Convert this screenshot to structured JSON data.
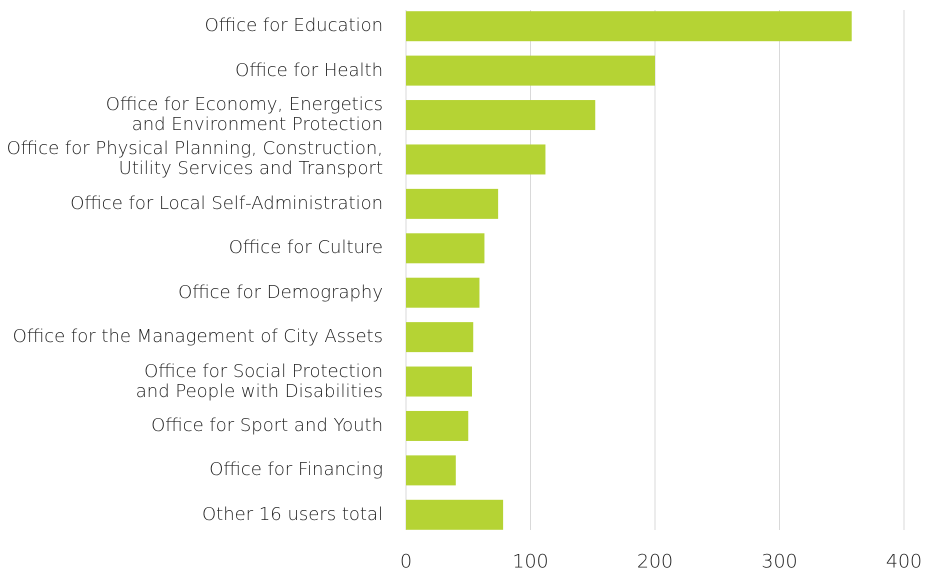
{
  "chart_data": {
    "type": "bar",
    "orientation": "horizontal",
    "categories": [
      "Office for Education",
      "Office for Health",
      "Office for Economy, Energetics\nand Environment Protection",
      "Office for Physical Planning, Construction,\nUtility Services and Transport",
      "Office for Local Self-Administration",
      "Office for Culture",
      "Office for Demography",
      "Office for the Management of City Assets",
      "Office for Social Protection\nand People with Disabilities",
      "Office for Sport and Youth",
      "Office for Financing",
      "Other 16 users total"
    ],
    "values": [
      358,
      200,
      152,
      112,
      74,
      63,
      59,
      54,
      53,
      50,
      40,
      78
    ],
    "color": "#b5d334",
    "xlim": [
      0,
      400
    ],
    "xticks": [
      0,
      100,
      200,
      300,
      400
    ],
    "grid": true
  }
}
